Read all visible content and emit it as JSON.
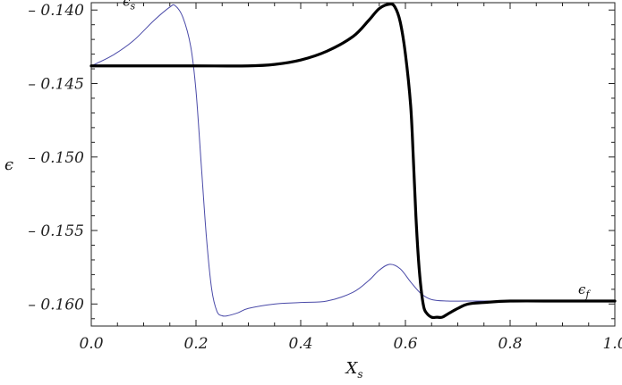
{
  "chart_data": {
    "type": "line",
    "xlabel": "X",
    "xlabel_sub": "s",
    "ylabel": "ϵ",
    "xlim": [
      0.0,
      1.0
    ],
    "ylim": [
      -0.1615,
      -0.1395
    ],
    "xticks": [
      "0.0",
      "0.2",
      "0.4",
      "0.6",
      "0.8",
      "1.0"
    ],
    "xtick_values": [
      0.0,
      0.2,
      0.4,
      0.6,
      0.8,
      1.0
    ],
    "yticks": [
      "– 0.140",
      "– 0.145",
      "– 0.150",
      "– 0.155",
      "– 0.160"
    ],
    "ytick_values": [
      -0.14,
      -0.145,
      -0.15,
      -0.155,
      -0.16
    ],
    "grid": false,
    "series": [
      {
        "name": "ϵ",
        "name_sub": "s",
        "color": "#4a4aa8",
        "x": [
          0.0,
          0.04,
          0.08,
          0.12,
          0.15,
          0.16,
          0.175,
          0.19,
          0.2,
          0.21,
          0.22,
          0.23,
          0.24,
          0.25,
          0.26,
          0.28,
          0.3,
          0.35,
          0.4,
          0.45,
          0.5,
          0.53,
          0.55,
          0.57,
          0.59,
          0.61,
          0.63,
          0.65,
          0.68,
          0.72,
          0.8,
          0.9,
          1.0
        ],
        "values": [
          -0.1438,
          -0.1431,
          -0.1421,
          -0.1407,
          -0.1398,
          -0.1397,
          -0.1405,
          -0.1425,
          -0.1455,
          -0.1505,
          -0.1555,
          -0.159,
          -0.1605,
          -0.1608,
          -0.1608,
          -0.1606,
          -0.1603,
          -0.16,
          -0.1599,
          -0.1598,
          -0.1592,
          -0.1584,
          -0.1577,
          -0.1573,
          -0.1576,
          -0.1585,
          -0.1593,
          -0.1597,
          -0.1598,
          -0.1598,
          -0.1598,
          -0.1598,
          -0.1598
        ]
      },
      {
        "name": "ϵ",
        "name_sub": "f",
        "color": "#000000",
        "x": [
          0.0,
          0.1,
          0.2,
          0.3,
          0.35,
          0.4,
          0.45,
          0.5,
          0.53,
          0.55,
          0.57,
          0.58,
          0.59,
          0.6,
          0.61,
          0.615,
          0.62,
          0.625,
          0.63,
          0.635,
          0.64,
          0.65,
          0.66,
          0.67,
          0.68,
          0.7,
          0.72,
          0.75,
          0.8,
          0.9,
          1.0
        ],
        "values": [
          -0.1438,
          -0.1438,
          -0.1438,
          -0.1438,
          -0.1437,
          -0.1434,
          -0.1428,
          -0.1418,
          -0.1407,
          -0.1399,
          -0.1396,
          -0.1398,
          -0.1408,
          -0.143,
          -0.1465,
          -0.15,
          -0.154,
          -0.157,
          -0.159,
          -0.1602,
          -0.1606,
          -0.1609,
          -0.1609,
          -0.1609,
          -0.1607,
          -0.1603,
          -0.16,
          -0.1599,
          -0.1598,
          -0.1598,
          -0.1598
        ]
      }
    ],
    "annotations": [
      {
        "text": "ϵ",
        "sub": "s",
        "x": 0.06,
        "y": -0.1397
      },
      {
        "text": "ϵ",
        "sub": "f",
        "x": 0.93,
        "y": -0.1593
      }
    ]
  }
}
